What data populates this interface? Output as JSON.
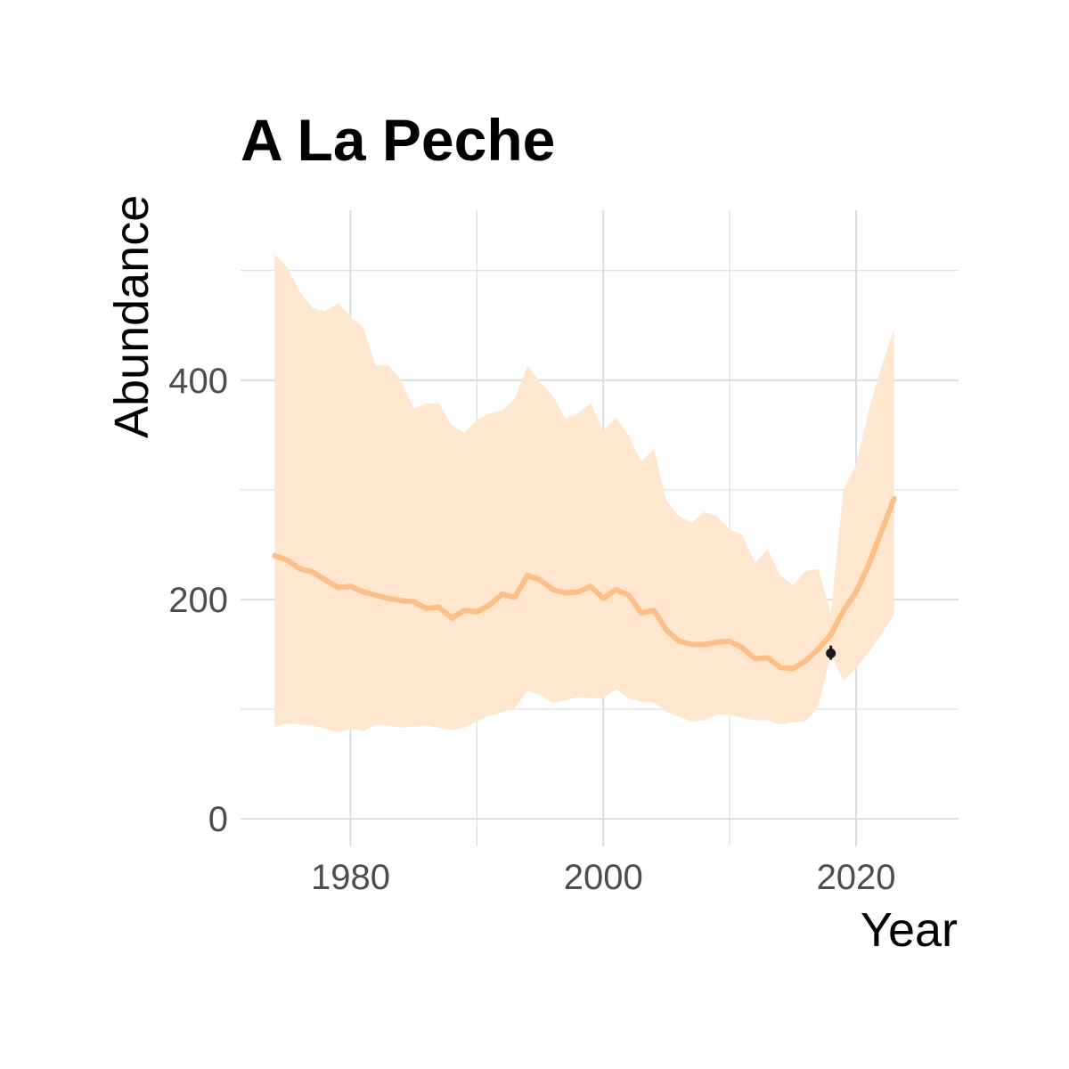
{
  "chart_data": {
    "type": "line",
    "title": "A La Peche",
    "xlabel": "Year",
    "ylabel": "Abundance",
    "xlim": [
      1971.3,
      2028.1
    ],
    "ylim": [
      -25,
      555
    ],
    "x_ticks": [
      1980,
      2000,
      2020
    ],
    "x_minor_ticks": [
      1990,
      2010
    ],
    "y_ticks": [
      0,
      200,
      400
    ],
    "y_minor_ticks": [
      100,
      300,
      500
    ],
    "grid": true,
    "legend": "none",
    "colors": {
      "line": "#fdbf86",
      "ribbon": "#fee6cf",
      "point": "#1a1a1a",
      "grid": "#d9d9d9"
    },
    "series": [
      {
        "x": [
          1974,
          1975,
          1976,
          1977,
          1978,
          1979,
          1980,
          1981,
          1982,
          1983,
          1984,
          1985,
          1986,
          1987,
          1988,
          1989,
          1990,
          1991,
          1992,
          1993,
          1994,
          1995,
          1996,
          1997,
          1998,
          1999,
          2000,
          2001,
          2002,
          2003,
          2004,
          2005,
          2006,
          2007,
          2008,
          2009,
          2010,
          2011,
          2012,
          2013,
          2014,
          2015,
          2016,
          2017,
          2018,
          2019,
          2020,
          2021,
          2022,
          2023
        ],
        "y": [
          240,
          236,
          228,
          225,
          218,
          211,
          212,
          207,
          204,
          201,
          199,
          198,
          192,
          193,
          183,
          190,
          189,
          195,
          205,
          202,
          222,
          218,
          209,
          206,
          207,
          212,
          201,
          209,
          204,
          188,
          190,
          172,
          162,
          159,
          159,
          161,
          162,
          156,
          146,
          147,
          138,
          137,
          144,
          155,
          168,
          190,
          207,
          232,
          262,
          292
        ],
        "lower": [
          84,
          87,
          86,
          85,
          82,
          79,
          82,
          80,
          86,
          85,
          83,
          84,
          85,
          83,
          81,
          83,
          89,
          94,
          97,
          101,
          117,
          113,
          106,
          108,
          111,
          110,
          110,
          118,
          110,
          107,
          106,
          98,
          93,
          89,
          90,
          95,
          95,
          92,
          90,
          90,
          86,
          88,
          89,
          102,
          150,
          126,
          138,
          152,
          168,
          186
        ],
        "upper": [
          515,
          503,
          480,
          466,
          463,
          470,
          458,
          448,
          413,
          414,
          400,
          374,
          379,
          379,
          359,
          352,
          364,
          370,
          372,
          383,
          413,
          398,
          386,
          365,
          370,
          379,
          354,
          366,
          350,
          326,
          337,
          290,
          276,
          270,
          280,
          276,
          264,
          259,
          233,
          246,
          222,
          213,
          226,
          228,
          188,
          301,
          323,
          372,
          412,
          447
        ]
      }
    ],
    "observations": [
      {
        "x": 2018,
        "y": 151,
        "ymin": 145,
        "ymax": 158
      }
    ]
  }
}
